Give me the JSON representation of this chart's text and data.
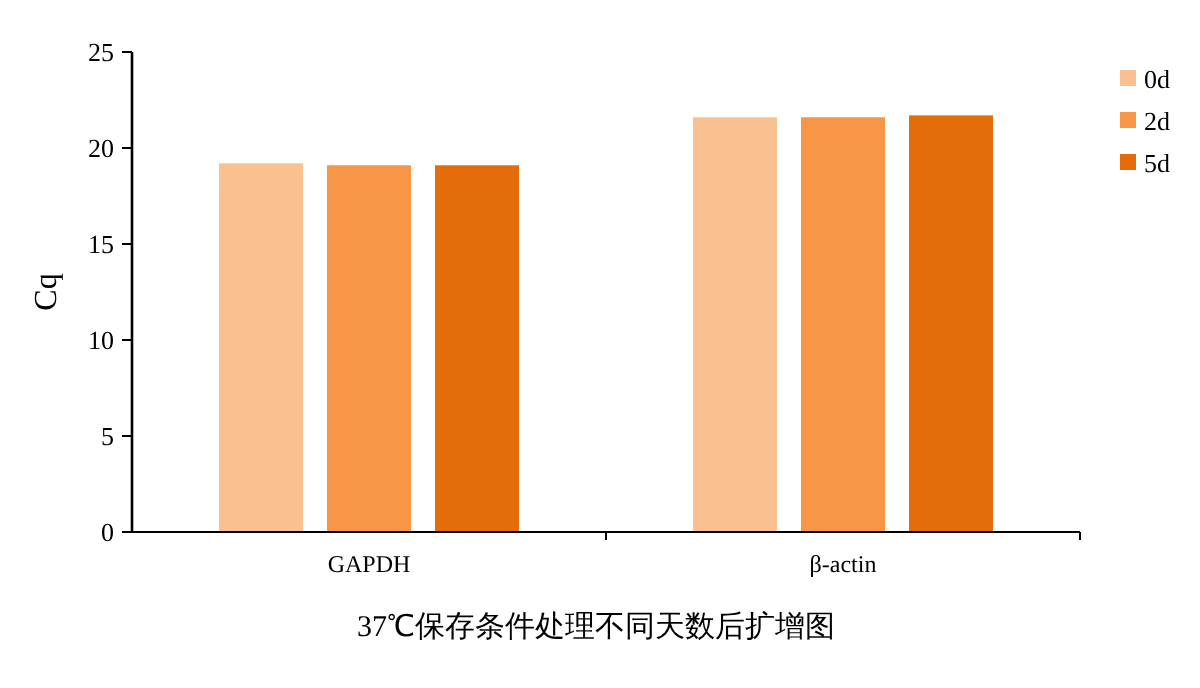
{
  "chart_data": {
    "type": "bar",
    "xlabel": "37℃保存条件处理不同天数后扩增图",
    "ylabel": "Cq",
    "categories": [
      "GAPDH",
      "β-actin"
    ],
    "series": [
      {
        "name": "0d",
        "color": "#fac090",
        "values": [
          19.2,
          21.6
        ]
      },
      {
        "name": "2d",
        "color": "#f79646",
        "values": [
          19.1,
          21.6
        ]
      },
      {
        "name": "5d",
        "color": "#e46c0a",
        "values": [
          19.1,
          21.7
        ]
      }
    ],
    "ylim": [
      0,
      25
    ],
    "yticks": [
      0,
      5,
      10,
      15,
      20,
      25
    ],
    "grid": false,
    "legend": "top right"
  }
}
